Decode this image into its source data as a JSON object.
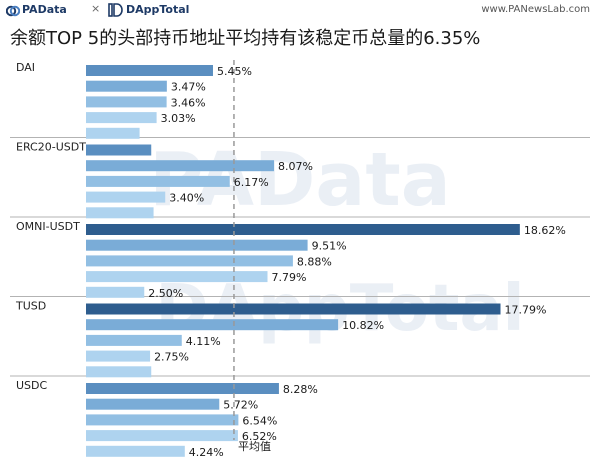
{
  "header": {
    "logo_text": "PAData",
    "separator": "×",
    "partner": "DAppTotal",
    "url": "www.PANewsLab.com"
  },
  "watermarks": [
    "PAData",
    "DAppTotal"
  ],
  "chart_data": {
    "type": "bar",
    "orientation": "horizontal",
    "title": "余额TOP 5的头部持币地址平均持有该稳定币总量的6.35%",
    "groups": [
      {
        "name": "DAI",
        "values": [
          5.45,
          3.47,
          3.46,
          3.03,
          2.3
        ]
      },
      {
        "name": "ERC20-USDT",
        "values": [
          2.8,
          8.07,
          6.17,
          3.4,
          2.9
        ]
      },
      {
        "name": "OMNI-USDT",
        "values": [
          18.62,
          9.51,
          8.88,
          7.79,
          2.5
        ]
      },
      {
        "name": "TUSD",
        "values": [
          17.79,
          10.82,
          4.11,
          2.75,
          2.8
        ]
      },
      {
        "name": "USDC",
        "values": [
          8.28,
          5.72,
          6.54,
          6.52,
          4.24
        ]
      }
    ],
    "data_labels": [
      [
        "5.45%",
        "3.47%",
        "3.46%",
        "3.03%",
        ""
      ],
      [
        "",
        "8.07%",
        "6.17%",
        "3.40%",
        ""
      ],
      [
        "18.62%",
        "9.51%",
        "8.88%",
        "7.79%",
        "2.50%"
      ],
      [
        "17.79%",
        "10.82%",
        "4.11%",
        "2.75%",
        ""
      ],
      [
        "8.28%",
        "5.72%",
        "6.54%",
        "6.52%",
        "4.24%"
      ]
    ],
    "reference_line": {
      "value": 6.35,
      "label": "平均值",
      "style": "dashed"
    },
    "colors": {
      "rank_shades": [
        "#2e5d8e",
        "#5a8ec0",
        "#7aacd7",
        "#92bfe3",
        "#aed3ef"
      ],
      "highlight": "#2e5d8e",
      "separator": "#b3b3b3",
      "reference": "#999999"
    },
    "grid": false,
    "legend": "none"
  }
}
